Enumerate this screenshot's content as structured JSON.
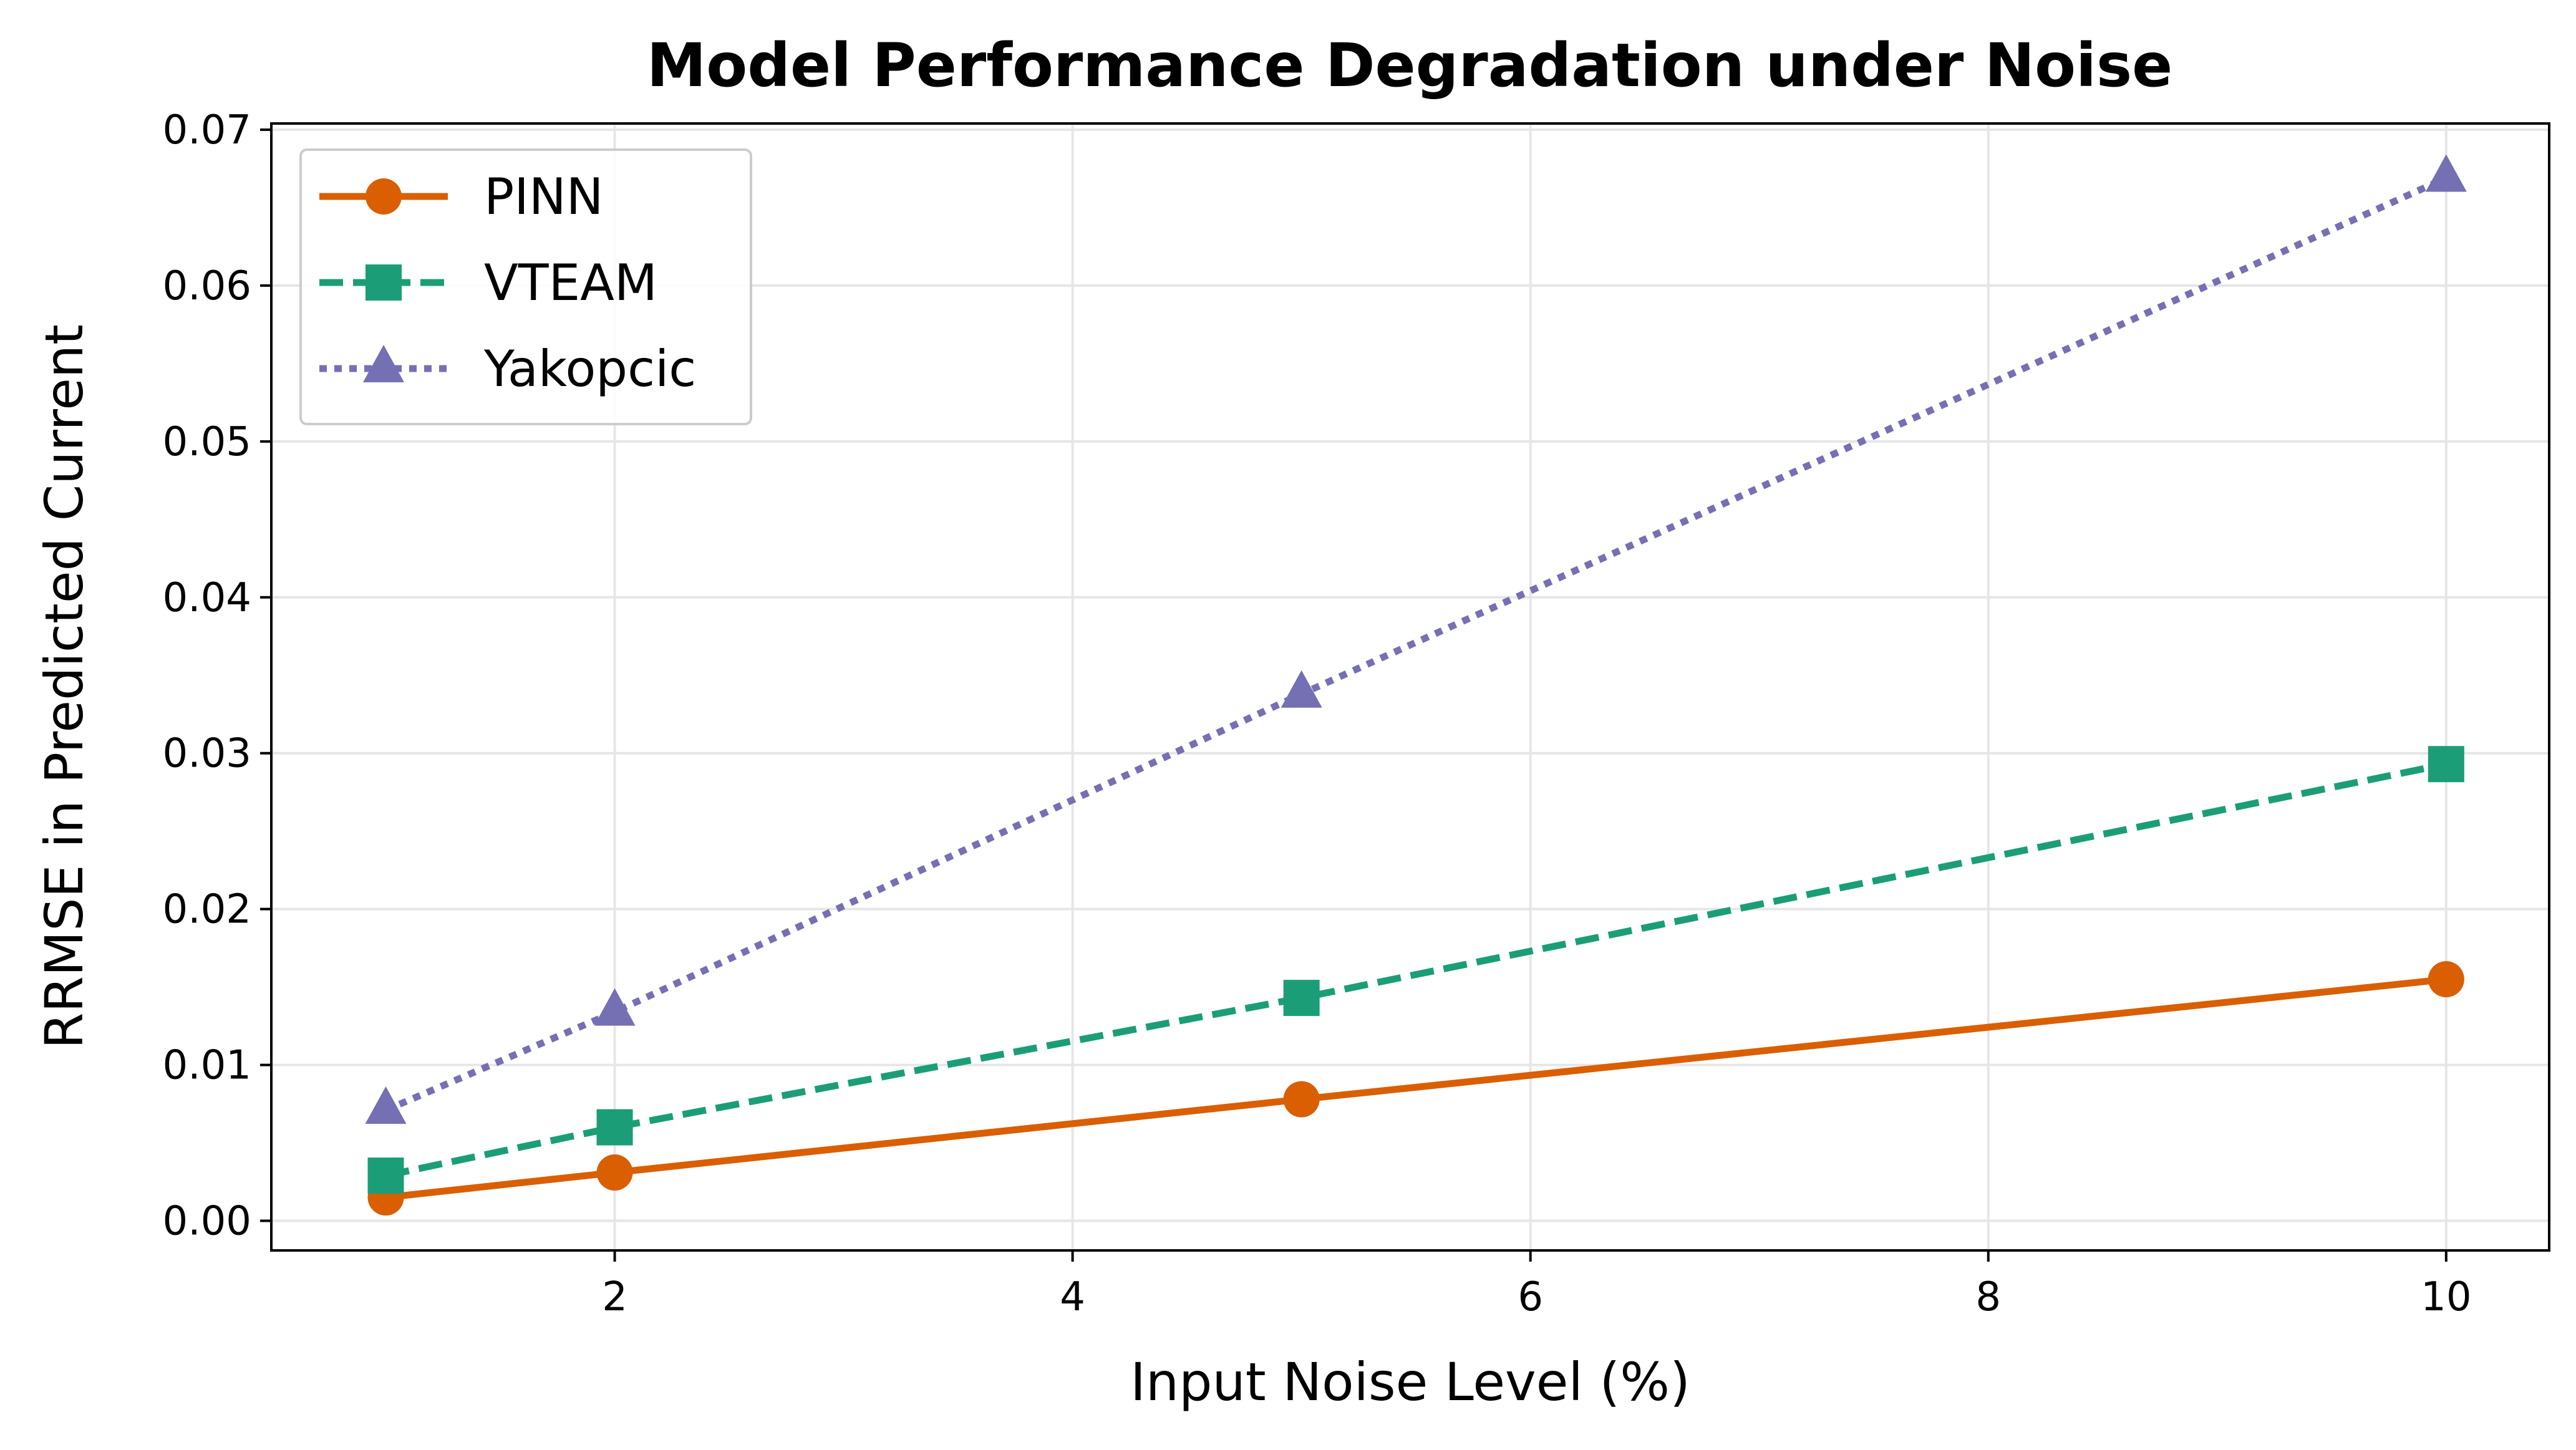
{
  "chart_data": {
    "type": "line",
    "title": "Model Performance Degradation under Noise",
    "xlabel": "Input Noise Level (%)",
    "ylabel": "RRMSE in Predicted Current",
    "x": [
      1,
      2,
      5,
      10
    ],
    "xlim": [
      0.5,
      10.45
    ],
    "ylim": [
      -0.0019,
      0.0704
    ],
    "xticks": [
      2,
      4,
      6,
      8,
      10
    ],
    "xtick_labels": [
      "2",
      "4",
      "6",
      "8",
      "10"
    ],
    "yticks": [
      0,
      0.01,
      0.02,
      0.03,
      0.04,
      0.05,
      0.06,
      0.07
    ],
    "ytick_labels": [
      "0.00",
      "0.01",
      "0.02",
      "0.03",
      "0.04",
      "0.05",
      "0.06",
      "0.07"
    ],
    "grid": true,
    "legend_position": "top-left",
    "series": [
      {
        "name": "PINN",
        "values": [
          0.0015,
          0.0031,
          0.0078,
          0.0155
        ],
        "color": "#d95f02",
        "line_style": "solid",
        "marker": "circle"
      },
      {
        "name": "VTEAM",
        "values": [
          0.0029,
          0.006,
          0.0143,
          0.0293
        ],
        "color": "#1b9e77",
        "line_style": "dashed",
        "marker": "square"
      },
      {
        "name": "Yakopcic",
        "values": [
          0.0071,
          0.0134,
          0.0338,
          0.0669
        ],
        "color": "#7570b3",
        "line_style": "dotted",
        "marker": "triangle"
      }
    ]
  }
}
